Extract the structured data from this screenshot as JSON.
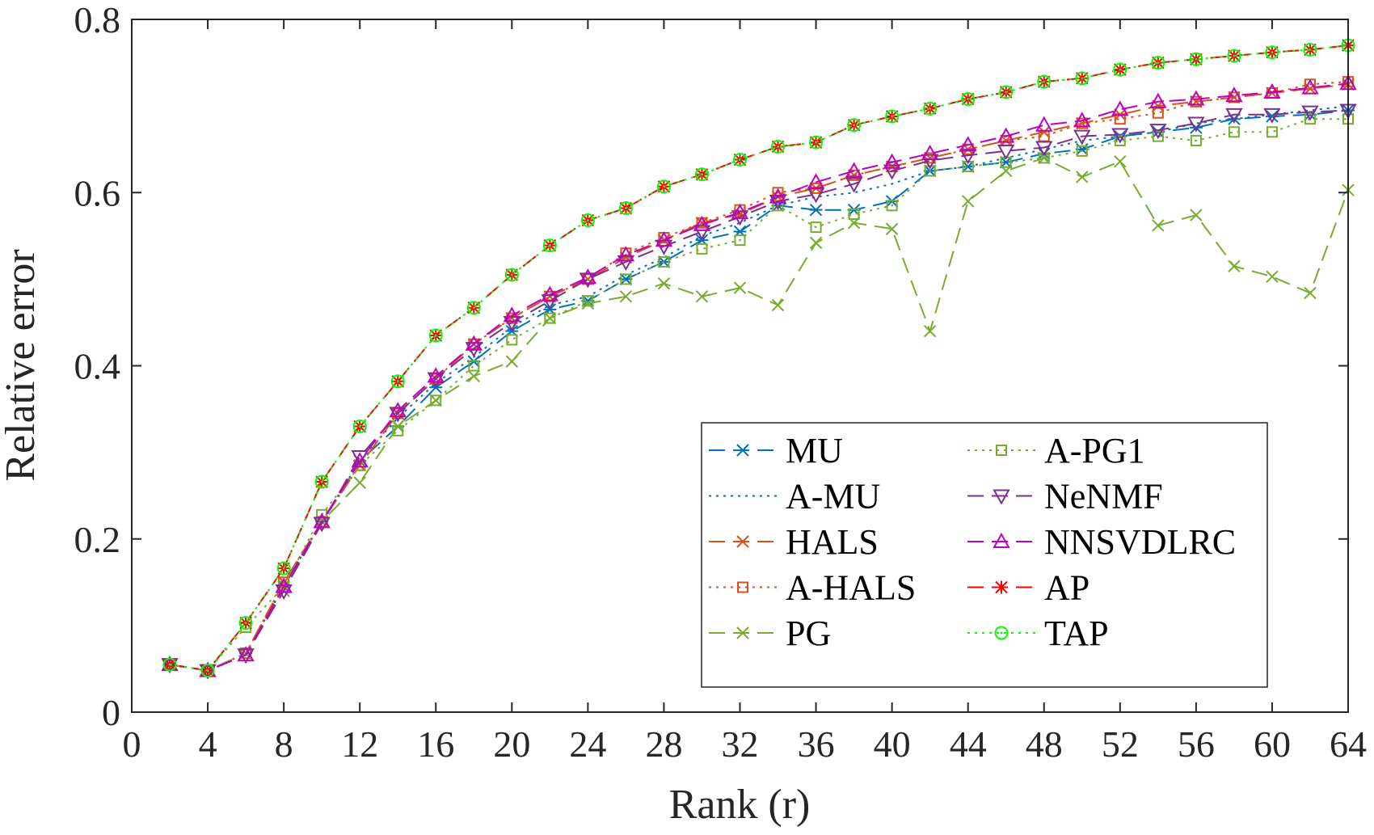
{
  "chart_data": {
    "type": "line",
    "xlabel": "Rank (r)",
    "ylabel": "Relative error",
    "xlim": [
      0,
      64
    ],
    "ylim": [
      0,
      0.8
    ],
    "xticks": [
      0,
      4,
      8,
      12,
      16,
      20,
      24,
      28,
      32,
      36,
      40,
      44,
      48,
      52,
      56,
      60,
      64
    ],
    "yticks": [
      0,
      0.2,
      0.4,
      0.6,
      0.8
    ],
    "grid": false,
    "legend_position": "bottom-right",
    "x": [
      2,
      4,
      6,
      8,
      10,
      12,
      14,
      16,
      18,
      20,
      22,
      24,
      26,
      28,
      30,
      32,
      34,
      36,
      38,
      40,
      42,
      44,
      46,
      48,
      50,
      52,
      54,
      56,
      58,
      60,
      62,
      64
    ],
    "series": [
      {
        "name": "MU",
        "color": "#0072BD",
        "dash": "20,10",
        "marker": "star6",
        "legend_col": 0,
        "values": [
          0.055,
          0.048,
          0.068,
          0.145,
          0.22,
          0.29,
          0.33,
          0.375,
          0.405,
          0.44,
          0.465,
          0.475,
          0.5,
          0.52,
          0.545,
          0.555,
          0.585,
          0.58,
          0.58,
          0.59,
          0.625,
          0.63,
          0.635,
          0.645,
          0.65,
          0.665,
          0.67,
          0.675,
          0.685,
          0.688,
          0.69,
          0.695
        ]
      },
      {
        "name": "A-MU",
        "color": "#0072BD",
        "dash": "3,6",
        "marker": "none",
        "legend_col": 0,
        "values": [
          0.055,
          0.048,
          0.068,
          0.145,
          0.22,
          0.29,
          0.34,
          0.38,
          0.41,
          0.445,
          0.47,
          0.48,
          0.505,
          0.525,
          0.55,
          0.565,
          0.585,
          0.595,
          0.6,
          0.61,
          0.625,
          0.63,
          0.64,
          0.65,
          0.66,
          0.665,
          0.67,
          0.68,
          0.685,
          0.69,
          0.695,
          0.7
        ]
      },
      {
        "name": "HALS",
        "color": "#D95319",
        "dash": "20,10",
        "marker": "x",
        "legend_col": 0,
        "values": [
          0.055,
          0.048,
          0.068,
          0.15,
          0.22,
          0.285,
          0.345,
          0.385,
          0.425,
          0.455,
          0.48,
          0.5,
          0.525,
          0.545,
          0.565,
          0.575,
          0.595,
          0.605,
          0.62,
          0.63,
          0.64,
          0.65,
          0.66,
          0.67,
          0.68,
          0.69,
          0.7,
          0.705,
          0.71,
          0.715,
          0.72,
          0.725
        ]
      },
      {
        "name": "A-HALS",
        "color": "#D95319",
        "dash": "3,6",
        "marker": "square",
        "legend_col": 0,
        "values": [
          0.055,
          0.048,
          0.068,
          0.15,
          0.22,
          0.285,
          0.345,
          0.385,
          0.425,
          0.455,
          0.48,
          0.5,
          0.53,
          0.548,
          0.565,
          0.58,
          0.6,
          0.605,
          0.62,
          0.63,
          0.64,
          0.65,
          0.66,
          0.665,
          0.68,
          0.685,
          0.692,
          0.705,
          0.71,
          0.715,
          0.725,
          0.728
        ]
      },
      {
        "name": "PG",
        "color": "#77AC30",
        "dash": "20,10",
        "marker": "x",
        "legend_col": 0,
        "values": [
          0.055,
          0.048,
          0.068,
          0.14,
          0.22,
          0.265,
          0.33,
          0.36,
          0.388,
          0.405,
          0.455,
          0.472,
          0.48,
          0.495,
          0.48,
          0.49,
          0.47,
          0.542,
          0.565,
          0.558,
          0.44,
          0.59,
          0.625,
          0.64,
          0.618,
          0.636,
          0.562,
          0.574,
          0.515,
          0.503,
          0.484,
          0.603
        ]
      },
      {
        "name": "A-PG1",
        "color": "#77AC30",
        "dash": "3,6",
        "marker": "square",
        "legend_col": 1,
        "values": [
          0.055,
          0.048,
          0.098,
          0.145,
          0.228,
          0.285,
          0.325,
          0.36,
          0.4,
          0.43,
          0.455,
          0.475,
          0.5,
          0.52,
          0.535,
          0.545,
          0.585,
          0.56,
          0.575,
          0.585,
          0.625,
          0.63,
          0.635,
          0.64,
          0.648,
          0.66,
          0.665,
          0.66,
          0.67,
          0.67,
          0.685,
          0.685
        ]
      },
      {
        "name": "NeNMF",
        "color": "#7E2F8E",
        "dash": "20,10",
        "marker": "tri-down",
        "legend_col": 1,
        "values": [
          0.055,
          0.048,
          0.066,
          0.14,
          0.218,
          0.295,
          0.345,
          0.385,
          0.42,
          0.45,
          0.475,
          0.5,
          0.52,
          0.538,
          0.555,
          0.572,
          0.59,
          0.598,
          0.61,
          0.625,
          0.637,
          0.643,
          0.648,
          0.652,
          0.665,
          0.667,
          0.672,
          0.68,
          0.69,
          0.69,
          0.693,
          0.695
        ]
      },
      {
        "name": "NNSVDLRC",
        "color": "#BF00BF",
        "dash": "20,10",
        "marker": "tri-up",
        "legend_col": 1,
        "values": [
          0.055,
          0.048,
          0.066,
          0.145,
          0.22,
          0.29,
          0.348,
          0.388,
          0.425,
          0.458,
          0.482,
          0.502,
          0.528,
          0.545,
          0.563,
          0.577,
          0.595,
          0.612,
          0.625,
          0.635,
          0.645,
          0.655,
          0.665,
          0.678,
          0.683,
          0.696,
          0.705,
          0.708,
          0.712,
          0.716,
          0.721,
          0.726
        ]
      },
      {
        "name": "AP",
        "color": "#FF0000",
        "dash": "20,10",
        "marker": "asterisk",
        "legend_col": 1,
        "values": [
          0.055,
          0.048,
          0.103,
          0.166,
          0.266,
          0.33,
          0.382,
          0.435,
          0.467,
          0.505,
          0.539,
          0.568,
          0.582,
          0.607,
          0.621,
          0.638,
          0.653,
          0.658,
          0.678,
          0.688,
          0.697,
          0.708,
          0.716,
          0.728,
          0.732,
          0.742,
          0.75,
          0.754,
          0.758,
          0.762,
          0.765,
          0.77
        ]
      },
      {
        "name": "TAP",
        "color": "#00FF00",
        "dash": "3,6",
        "marker": "circle",
        "legend_col": 1,
        "values": [
          0.055,
          0.048,
          0.103,
          0.166,
          0.266,
          0.33,
          0.382,
          0.435,
          0.467,
          0.505,
          0.539,
          0.568,
          0.582,
          0.607,
          0.621,
          0.638,
          0.653,
          0.658,
          0.678,
          0.688,
          0.697,
          0.708,
          0.716,
          0.728,
          0.732,
          0.742,
          0.75,
          0.754,
          0.758,
          0.762,
          0.765,
          0.77
        ]
      }
    ]
  }
}
